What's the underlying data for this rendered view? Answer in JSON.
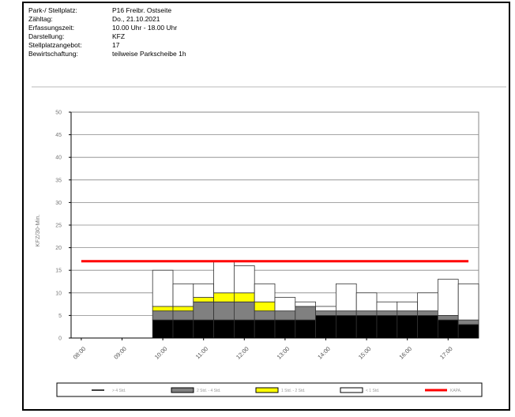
{
  "info": {
    "rows": [
      {
        "label": "Park-/ Stellplatz:",
        "value": "P16 Freibr. Ostseite"
      },
      {
        "label": "Zähltag:",
        "value": "Do., 21.10.2021"
      },
      {
        "label": "Erfassungszeit:",
        "value": "10.00 Uhr - 18.00 Uhr"
      },
      {
        "label": "Darstellung:",
        "value": "KFZ"
      },
      {
        "label": "Stellplatzangebot:",
        "value": "17"
      },
      {
        "label": "Bewirtschaftung:",
        "value": "teilweise Parkscheibe 1h"
      }
    ]
  },
  "chart_data": {
    "type": "bar",
    "stacked": true,
    "ylabel": "KFZ/30-Min.",
    "ylim": [
      0,
      50
    ],
    "yticks": [
      0,
      5,
      10,
      15,
      20,
      25,
      30,
      35,
      40,
      45,
      50
    ],
    "grid": true,
    "categories": [
      "08:00",
      "08:30",
      "09:00",
      "09:30",
      "10:00",
      "10:30",
      "11:00",
      "11:30",
      "12:00",
      "12:30",
      "13:00",
      "13:30",
      "14:00",
      "14:30",
      "15:00",
      "15:30",
      "16:00",
      "16:30",
      "17:00",
      "17:30"
    ],
    "xtick_labels": [
      "08:00",
      "09:00",
      "10:00",
      "11:00",
      "12:00",
      "13:00",
      "14:00",
      "15:00",
      "16:00",
      "17:00"
    ],
    "series": [
      {
        "name": "> 4 Std.",
        "color": "#000000",
        "values": [
          0,
          0,
          0,
          0,
          4,
          4,
          4,
          4,
          4,
          4,
          4,
          4,
          5,
          5,
          5,
          5,
          5,
          5,
          4,
          3
        ]
      },
      {
        "name": "2 Std. - 4 Std.",
        "color": "#808080",
        "values": [
          0,
          0,
          0,
          0,
          2,
          2,
          4,
          4,
          4,
          2,
          2,
          3,
          1,
          1,
          1,
          1,
          1,
          1,
          1,
          1
        ]
      },
      {
        "name": "1 Std. - 2 Std.",
        "color": "#ffff00",
        "values": [
          0,
          0,
          0,
          0,
          1,
          1,
          1,
          2,
          2,
          2,
          0,
          0,
          0,
          0,
          0,
          0,
          0,
          0,
          0,
          0
        ]
      },
      {
        "name": "< 1 Std.",
        "color": "#ffffff",
        "values": [
          0,
          0,
          0,
          0,
          8,
          5,
          3,
          7,
          6,
          4,
          3,
          1,
          1,
          6,
          4,
          2,
          2,
          4,
          8,
          8
        ]
      }
    ],
    "capacity": {
      "name": "KAPA.",
      "value": 17,
      "color": "#ff0000"
    },
    "legend_position": "bottom"
  }
}
